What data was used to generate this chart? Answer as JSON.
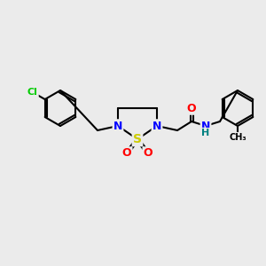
{
  "bg_color": "#ebebeb",
  "bond_color": "#000000",
  "bond_width": 1.5,
  "atom_colors": {
    "N": "#0000ff",
    "O": "#ff0000",
    "S": "#cccc00",
    "Cl": "#00cc00",
    "C": "#000000",
    "H": "#008080"
  },
  "font_size": 9,
  "fig_size": [
    3.0,
    3.0
  ],
  "dpi": 100
}
